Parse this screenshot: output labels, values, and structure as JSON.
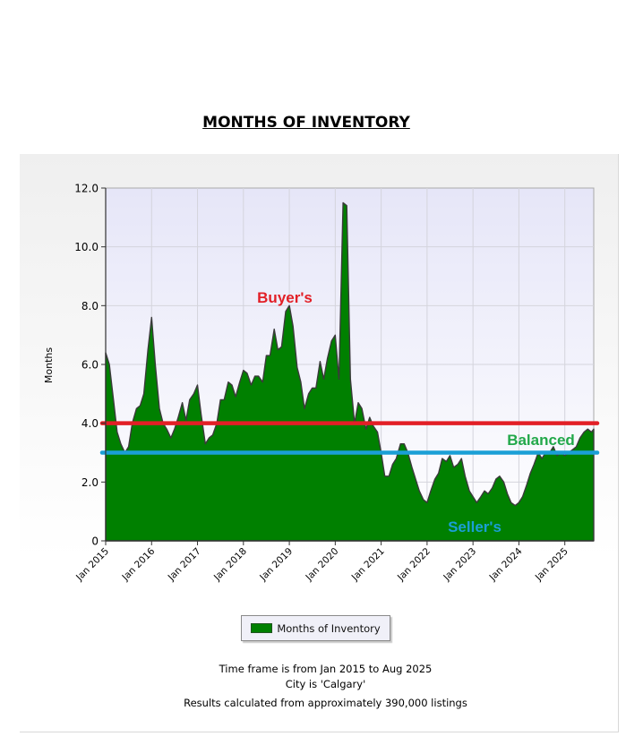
{
  "title": "MONTHS OF INVENTORY",
  "legend_label": "Months of Inventory",
  "footnotes": {
    "timeframe": "Time frame is from Jan 2015 to Aug 2025",
    "city": "City is 'Calgary'",
    "results": "Results calculated from approximately 390,000 listings"
  },
  "chart_data": {
    "type": "area",
    "ylabel": "Months",
    "ylim": [
      0,
      12
    ],
    "yticks": [
      "0",
      "2.0",
      "4.0",
      "6.0",
      "8.0",
      "10.0",
      "12.0"
    ],
    "xlim": [
      2015.0,
      2025.63
    ],
    "xticks": [
      "Jan 2015",
      "Jan 2016",
      "Jan 2017",
      "Jan 2018",
      "Jan 2019",
      "Jan 2020",
      "Jan 2021",
      "Jan 2022",
      "Jan 2023",
      "Jan 2024",
      "Jan 2025"
    ],
    "grid": true,
    "legend": "bottom",
    "colors": {
      "fill": "#008000",
      "buyers_line": "#e21f26",
      "sellers_line": "#1a9fd6",
      "balanced_text": "#22a84a"
    },
    "series": [
      {
        "name": "Months of Inventory",
        "points": [
          [
            2015.0,
            6.4
          ],
          [
            2015.08,
            6.0
          ],
          [
            2015.17,
            4.8
          ],
          [
            2015.25,
            3.7
          ],
          [
            2015.33,
            3.3
          ],
          [
            2015.42,
            3.0
          ],
          [
            2015.5,
            3.2
          ],
          [
            2015.58,
            4.0
          ],
          [
            2015.67,
            4.5
          ],
          [
            2015.75,
            4.6
          ],
          [
            2015.83,
            5.0
          ],
          [
            2015.92,
            6.5
          ],
          [
            2016.0,
            7.6
          ],
          [
            2016.08,
            6.0
          ],
          [
            2016.17,
            4.5
          ],
          [
            2016.25,
            4.0
          ],
          [
            2016.33,
            3.8
          ],
          [
            2016.42,
            3.5
          ],
          [
            2016.5,
            3.8
          ],
          [
            2016.58,
            4.2
          ],
          [
            2016.67,
            4.7
          ],
          [
            2016.75,
            4.1
          ],
          [
            2016.83,
            4.8
          ],
          [
            2016.92,
            5.0
          ],
          [
            2017.0,
            5.3
          ],
          [
            2017.08,
            4.3
          ],
          [
            2017.17,
            3.3
          ],
          [
            2017.25,
            3.5
          ],
          [
            2017.33,
            3.6
          ],
          [
            2017.42,
            4.0
          ],
          [
            2017.5,
            4.8
          ],
          [
            2017.58,
            4.8
          ],
          [
            2017.67,
            5.4
          ],
          [
            2017.75,
            5.3
          ],
          [
            2017.83,
            4.9
          ],
          [
            2017.92,
            5.4
          ],
          [
            2018.0,
            5.8
          ],
          [
            2018.08,
            5.7
          ],
          [
            2018.17,
            5.3
          ],
          [
            2018.25,
            5.6
          ],
          [
            2018.33,
            5.6
          ],
          [
            2018.42,
            5.4
          ],
          [
            2018.5,
            6.3
          ],
          [
            2018.58,
            6.3
          ],
          [
            2018.67,
            7.2
          ],
          [
            2018.75,
            6.5
          ],
          [
            2018.83,
            6.6
          ],
          [
            2018.92,
            7.8
          ],
          [
            2019.0,
            8.0
          ],
          [
            2019.08,
            7.3
          ],
          [
            2019.17,
            5.9
          ],
          [
            2019.25,
            5.4
          ],
          [
            2019.33,
            4.5
          ],
          [
            2019.42,
            5.0
          ],
          [
            2019.5,
            5.2
          ],
          [
            2019.58,
            5.2
          ],
          [
            2019.67,
            6.1
          ],
          [
            2019.75,
            5.5
          ],
          [
            2019.83,
            6.2
          ],
          [
            2019.92,
            6.8
          ],
          [
            2020.0,
            7.0
          ],
          [
            2020.08,
            5.5
          ],
          [
            2020.17,
            11.5
          ],
          [
            2020.25,
            11.4
          ],
          [
            2020.33,
            5.5
          ],
          [
            2020.42,
            4.0
          ],
          [
            2020.5,
            4.7
          ],
          [
            2020.58,
            4.5
          ],
          [
            2020.67,
            3.8
          ],
          [
            2020.75,
            4.2
          ],
          [
            2020.83,
            3.9
          ],
          [
            2020.92,
            3.7
          ],
          [
            2021.0,
            3.0
          ],
          [
            2021.08,
            2.2
          ],
          [
            2021.17,
            2.2
          ],
          [
            2021.25,
            2.6
          ],
          [
            2021.33,
            2.8
          ],
          [
            2021.42,
            3.3
          ],
          [
            2021.5,
            3.3
          ],
          [
            2021.58,
            3.0
          ],
          [
            2021.67,
            2.5
          ],
          [
            2021.75,
            2.1
          ],
          [
            2021.83,
            1.7
          ],
          [
            2021.92,
            1.4
          ],
          [
            2022.0,
            1.3
          ],
          [
            2022.08,
            1.7
          ],
          [
            2022.17,
            2.1
          ],
          [
            2022.25,
            2.3
          ],
          [
            2022.33,
            2.8
          ],
          [
            2022.42,
            2.7
          ],
          [
            2022.5,
            2.9
          ],
          [
            2022.58,
            2.5
          ],
          [
            2022.67,
            2.6
          ],
          [
            2022.75,
            2.8
          ],
          [
            2022.83,
            2.2
          ],
          [
            2022.92,
            1.7
          ],
          [
            2023.0,
            1.5
          ],
          [
            2023.08,
            1.3
          ],
          [
            2023.17,
            1.5
          ],
          [
            2023.25,
            1.7
          ],
          [
            2023.33,
            1.6
          ],
          [
            2023.42,
            1.8
          ],
          [
            2023.5,
            2.1
          ],
          [
            2023.58,
            2.2
          ],
          [
            2023.67,
            2.0
          ],
          [
            2023.75,
            1.6
          ],
          [
            2023.83,
            1.3
          ],
          [
            2023.92,
            1.2
          ],
          [
            2024.0,
            1.3
          ],
          [
            2024.08,
            1.5
          ],
          [
            2024.17,
            1.9
          ],
          [
            2024.25,
            2.3
          ],
          [
            2024.33,
            2.6
          ],
          [
            2024.42,
            3.0
          ],
          [
            2024.5,
            2.8
          ],
          [
            2024.58,
            3.0
          ],
          [
            2024.67,
            3.0
          ],
          [
            2024.75,
            3.2
          ],
          [
            2024.83,
            2.9
          ],
          [
            2024.92,
            3.0
          ],
          [
            2025.0,
            2.9
          ],
          [
            2025.08,
            3.0
          ],
          [
            2025.17,
            3.1
          ],
          [
            2025.25,
            3.2
          ],
          [
            2025.33,
            3.5
          ],
          [
            2025.42,
            3.7
          ],
          [
            2025.5,
            3.8
          ],
          [
            2025.58,
            3.7
          ],
          [
            2025.63,
            3.8
          ]
        ]
      }
    ],
    "reference_lines": [
      {
        "label": "Buyer's",
        "value": 4.0,
        "color": "#e21f26"
      },
      {
        "label": "Seller's",
        "value": 3.0,
        "color": "#1a9fd6"
      }
    ],
    "annotations": [
      "Buyer's",
      "Balanced",
      "Seller's"
    ]
  }
}
